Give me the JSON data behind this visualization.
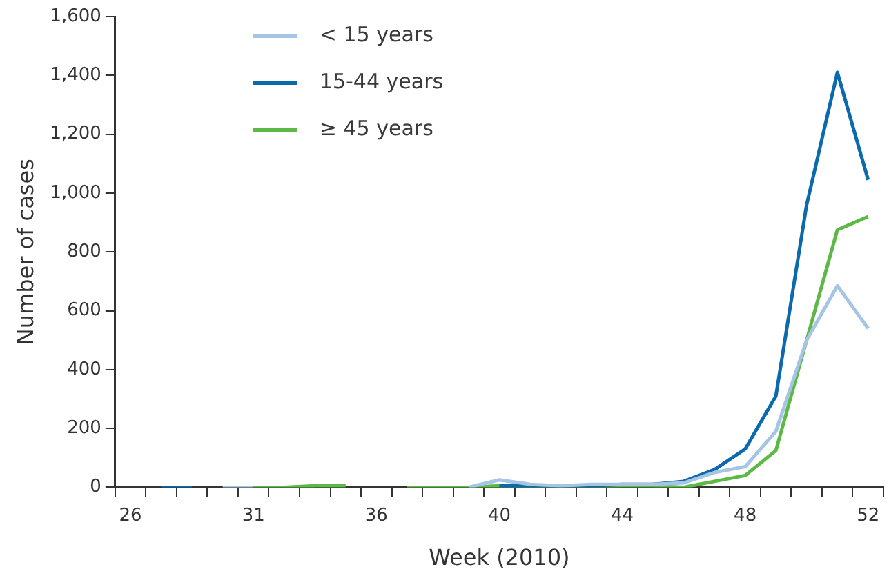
{
  "chart_data": {
    "type": "line",
    "xlabel": "Week (2010)",
    "ylabel": "Number of cases",
    "categories": [
      "26",
      null,
      null,
      null,
      "31",
      null,
      null,
      null,
      "36",
      null,
      null,
      null,
      "40",
      null,
      null,
      null,
      "44",
      null,
      null,
      null,
      "48",
      null,
      null,
      null,
      "52"
    ],
    "series": [
      {
        "name": "< 15 years",
        "color": "#a6c4e4",
        "values": [
          null,
          null,
          null,
          0,
          0,
          null,
          null,
          null,
          null,
          null,
          null,
          0,
          25,
          10,
          5,
          10,
          10,
          10,
          15,
          50,
          70,
          190,
          500,
          685,
          540
        ]
      },
      {
        "name": "15-44 years",
        "color": "#0a6aad",
        "values": [
          null,
          0,
          0,
          null,
          null,
          null,
          null,
          null,
          null,
          null,
          null,
          null,
          5,
          5,
          5,
          5,
          10,
          10,
          20,
          60,
          130,
          310,
          960,
          1410,
          1045
        ]
      },
      {
        "name": "≥ 45 years",
        "color": "#5cb945",
        "values": [
          null,
          null,
          null,
          null,
          0,
          0,
          5,
          5,
          null,
          0,
          0,
          0,
          5,
          0,
          0,
          0,
          5,
          5,
          0,
          20,
          40,
          125,
          500,
          875,
          920
        ]
      }
    ],
    "ylim": [
      0,
      1600
    ],
    "yticks": [
      0,
      {
        "value": 200,
        "label": "200"
      },
      {
        "value": 400,
        "label": "400"
      },
      {
        "value": 600,
        "label": "600"
      },
      {
        "value": 800,
        "label": "800"
      },
      {
        "value": 1000,
        "label": "1,000"
      },
      {
        "value": 1200,
        "label": "1,200"
      },
      {
        "value": 1400,
        "label": "1,400"
      },
      {
        "value": 1600,
        "label": "1,600"
      }
    ],
    "grid": false,
    "legend": "top left",
    "marker": "none",
    "line_style": "solid"
  }
}
